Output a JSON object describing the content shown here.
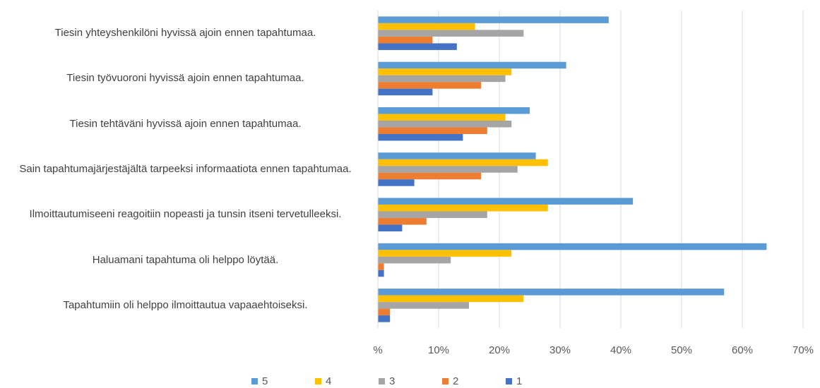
{
  "chart_data": {
    "type": "hbar",
    "categories": [
      "Tiesin yhteyshenkilöni hyvissä ajoin ennen tapahtumaa.",
      "Tiesin työvuoroni hyvissä ajoin ennen tapahtumaa.",
      "Tiesin tehtäväni hyvissä ajoin ennen tapahtumaa.",
      "Sain tapahtumajärjestäjältä tarpeeksi informaatiota ennen tapahtumaa.",
      "Ilmoittautumiseeni reagoitiin nopeasti ja tunsin itseni tervetulleeksi.",
      "Haluamani tapahtuma oli helppo löytää.",
      "Tapahtumiin oli helppo ilmoittautua vapaaehtoiseksi."
    ],
    "series": [
      {
        "name": "5",
        "color": "#5b9bd5",
        "values": [
          38,
          31,
          25,
          26,
          42,
          64,
          57
        ]
      },
      {
        "name": "4",
        "color": "#ffc000",
        "values": [
          16,
          22,
          21,
          28,
          28,
          22,
          24
        ]
      },
      {
        "name": "3",
        "color": "#a5a5a5",
        "values": [
          24,
          21,
          22,
          23,
          18,
          12,
          15
        ]
      },
      {
        "name": "2",
        "color": "#ed7d31",
        "values": [
          9,
          17,
          18,
          17,
          8,
          1,
          2
        ]
      },
      {
        "name": "1",
        "color": "#4472c4",
        "values": [
          13,
          9,
          14,
          6,
          4,
          1,
          2
        ]
      }
    ],
    "xlim": [
      0,
      70
    ],
    "xticks": [
      {
        "value": 0,
        "label": "%"
      },
      {
        "value": 10,
        "label": "10%"
      },
      {
        "value": 20,
        "label": "20%"
      },
      {
        "value": 30,
        "label": "30%"
      },
      {
        "value": 40,
        "label": "40%"
      },
      {
        "value": 50,
        "label": "50%"
      },
      {
        "value": 60,
        "label": "60%"
      },
      {
        "value": 70,
        "label": "70%"
      }
    ],
    "grid": true,
    "legend": "bottom"
  }
}
